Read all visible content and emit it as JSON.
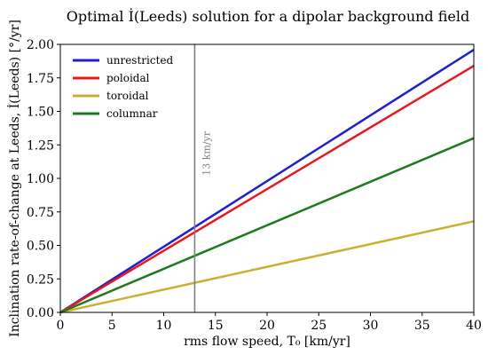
{
  "chart_data": {
    "type": "line",
    "title": "Optimal İ(Leeds) solution for a dipolar background field",
    "xlabel": "rms flow speed, T₀ [km/yr]",
    "ylabel": "Inclination rate-of-change at Leeds, İ(Leeds) [°/yr]",
    "xlim": [
      0,
      40
    ],
    "ylim": [
      0,
      2.0
    ],
    "x_ticks": [
      "0",
      "5",
      "10",
      "15",
      "20",
      "25",
      "30",
      "35",
      "40"
    ],
    "y_ticks": [
      "0.00",
      "0.25",
      "0.50",
      "0.75",
      "1.00",
      "1.25",
      "1.50",
      "1.75",
      "2.00"
    ],
    "grid": false,
    "legend_position": "top-left",
    "series": [
      {
        "name": "unrestricted",
        "color": "#1f1fd0",
        "x": [
          0,
          40
        ],
        "y": [
          0,
          1.96
        ]
      },
      {
        "name": "poloidal",
        "color": "#e8191e",
        "x": [
          0,
          40
        ],
        "y": [
          0,
          1.84
        ]
      },
      {
        "name": "toroidal",
        "color": "#c8b030",
        "x": [
          0,
          40
        ],
        "y": [
          0,
          0.68
        ]
      },
      {
        "name": "columnar",
        "color": "#1e7a1e",
        "x": [
          0,
          40
        ],
        "y": [
          0,
          1.3
        ]
      }
    ],
    "vline": {
      "x": 13,
      "label": "13 km/yr",
      "color": "#808080"
    }
  }
}
